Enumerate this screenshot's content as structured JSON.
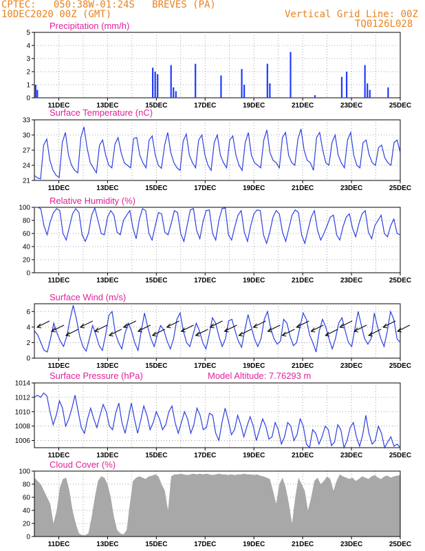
{
  "header": {
    "line1_left": "CPTEC:   050:38W-01:24S   BREVES (PA)",
    "line2_left": "10DEC2020 00Z (GMT)",
    "line1_right": "Vertical Grid Line: 00Z",
    "line2_right": "TQ0126L028"
  },
  "x_tick_labels": [
    "11DEC",
    "13DEC",
    "15DEC",
    "17DEC",
    "19DEC",
    "21DEC",
    "23DEC",
    "25DEC"
  ],
  "colors": {
    "line": "#2b3fe0",
    "bar": "#1f3bff",
    "area": "#a8a8a8",
    "title": "#e0209a",
    "header": "#e8821e"
  },
  "chart_data": [
    {
      "type": "bar",
      "title": "Precipitation (mm/h)",
      "ylim": [
        0,
        5
      ],
      "yticks": [
        "0",
        "1",
        "2",
        "3",
        "4",
        "5"
      ],
      "x": [
        "10.05",
        "10.12",
        "14.85",
        "14.95",
        "15.05",
        "15.6",
        "15.7",
        "15.8",
        "16.6",
        "17.65",
        "18.5",
        "18.6",
        "19.55",
        "19.65",
        "20.5",
        "21.5",
        "22.6",
        "22.8",
        "23.55",
        "23.65",
        "23.75",
        "24.5"
      ],
      "values": [
        1.0,
        0.6,
        2.3,
        2.0,
        1.8,
        2.5,
        0.8,
        0.5,
        2.6,
        1.7,
        2.2,
        1.0,
        2.6,
        1.1,
        3.5,
        0.2,
        1.6,
        2.0,
        2.5,
        1.1,
        0.6,
        0.8
      ]
    },
    {
      "type": "line",
      "title": "Surface Temperature (nC)",
      "ylim": [
        21,
        33
      ],
      "yticks": [
        "21",
        "24",
        "27",
        "30",
        "33"
      ],
      "x_range": [
        "10DEC 00Z",
        "25DEC 00Z"
      ],
      "values": [
        22.0,
        21.5,
        21.3,
        28.0,
        29.2,
        25.0,
        23.0,
        22.0,
        21.6,
        28.5,
        30.5,
        26.0,
        24.0,
        23.0,
        22.5,
        29.5,
        31.6,
        27.5,
        24.5,
        23.5,
        22.5,
        28.0,
        29.0,
        26.0,
        24.0,
        23.5,
        28.2,
        29.5,
        26.5,
        24.5,
        24.0,
        23.5,
        29.3,
        29.5,
        26.0,
        24.5,
        23.5,
        29.0,
        29.8,
        26.0,
        24.0,
        23.4,
        28.0,
        30.5,
        26.5,
        24.5,
        23.5,
        23.0,
        28.8,
        30.2,
        26.0,
        24.5,
        23.5,
        29.0,
        30.0,
        26.0,
        24.0,
        23.0,
        28.5,
        30.0,
        26.0,
        24.5,
        23.5,
        29.0,
        29.8,
        26.0,
        24.0,
        23.0,
        28.5,
        30.5,
        26.0,
        24.5,
        24.0,
        23.5,
        29.0,
        31.0,
        26.5,
        25.0,
        24.5,
        23.5,
        29.5,
        30.5,
        26.0,
        24.5,
        24.0,
        29.2,
        31.2,
        27.0,
        25.0,
        24.5,
        23.0,
        29.5,
        30.5,
        27.0,
        24.5,
        24.0,
        28.5,
        30.0,
        26.0,
        24.5,
        23.5,
        29.0,
        30.5,
        26.0,
        24.0,
        23.5,
        28.5,
        29.0,
        26.0,
        24.5,
        24.0,
        27.5,
        28.0,
        25.5,
        24.5,
        24.0,
        28.5,
        29.0,
        26.5
      ]
    },
    {
      "type": "line",
      "title": "Relative Humidity (%)",
      "ylim": [
        0,
        100
      ],
      "yticks": [
        "0",
        "20",
        "40",
        "60",
        "80",
        "100"
      ],
      "values": [
        100,
        100,
        98,
        72,
        58,
        78,
        92,
        98,
        95,
        60,
        50,
        70,
        90,
        98,
        92,
        58,
        48,
        60,
        88,
        99,
        80,
        60,
        58,
        85,
        95,
        88,
        62,
        58,
        80,
        88,
        95,
        68,
        52,
        82,
        98,
        95,
        60,
        50,
        72,
        92,
        90,
        62,
        58,
        75,
        95,
        92,
        60,
        48,
        72,
        96,
        98,
        65,
        52,
        78,
        95,
        96,
        60,
        50,
        80,
        98,
        99,
        58,
        50,
        70,
        88,
        95,
        62,
        48,
        72,
        90,
        96,
        95,
        58,
        45,
        62,
        85,
        95,
        90,
        62,
        48,
        68,
        88,
        96,
        92,
        58,
        45,
        65,
        85,
        95,
        65,
        50,
        60,
        72,
        85,
        88,
        58,
        50,
        70,
        85,
        90,
        68,
        55,
        75,
        90,
        95,
        62,
        52,
        72,
        80,
        88,
        60,
        55,
        72,
        82,
        60,
        58
      ]
    },
    {
      "type": "line",
      "title": "Surface Wind (m/s)",
      "ylim": [
        0,
        7
      ],
      "yticks": [
        "0",
        "2",
        "4",
        "6"
      ],
      "values": [
        3.5,
        3.0,
        2.0,
        1.0,
        0.8,
        2.5,
        4.5,
        3.2,
        2.2,
        1.5,
        2.8,
        5.0,
        6.8,
        5.0,
        2.8,
        1.5,
        0.9,
        2.5,
        4.2,
        3.0,
        1.6,
        1.0,
        3.0,
        5.5,
        6.0,
        3.2,
        2.0,
        1.2,
        3.2,
        4.5,
        3.5,
        2.0,
        1.0,
        3.5,
        5.8,
        4.0,
        2.5,
        1.5,
        3.0,
        4.2,
        3.6,
        2.2,
        1.2,
        2.5,
        5.0,
        5.8,
        3.5,
        2.0,
        1.5,
        3.0,
        4.5,
        3.5,
        2.0,
        1.2,
        3.0,
        5.2,
        4.5,
        2.8,
        1.5,
        2.5,
        4.8,
        5.0,
        3.5,
        2.2,
        1.4,
        3.6,
        5.6,
        4.0,
        2.5,
        1.5,
        2.5,
        5.0,
        6.0,
        3.8,
        2.5,
        1.8,
        2.2,
        5.0,
        4.5,
        2.8,
        1.6,
        2.0,
        4.0,
        5.8,
        5.0,
        3.0,
        2.0,
        0.8,
        3.5,
        5.0,
        4.0,
        2.5,
        1.2,
        2.5,
        4.5,
        5.2,
        3.5,
        2.0,
        1.5,
        3.8,
        6.0,
        4.2,
        2.5,
        1.8,
        2.5,
        5.8,
        4.0,
        2.5,
        1.5,
        3.5,
        6.0,
        5.0,
        2.5,
        2.0
      ]
    },
    {
      "type": "line",
      "title": "Surface Pressure (hPa)",
      "annotation": "Model Altitude: 7.76293 m",
      "ylim": [
        1005,
        1014
      ],
      "yticks": [
        "1006",
        "1008",
        "1010",
        "1012",
        "1014"
      ],
      "values": [
        1012.0,
        1012.3,
        1012.0,
        1012.6,
        1012.2,
        1010.0,
        1008.2,
        1009.5,
        1011.5,
        1010.5,
        1008.0,
        1009.0,
        1010.5,
        1012.3,
        1010.0,
        1007.8,
        1007.0,
        1009.0,
        1010.5,
        1009.0,
        1007.8,
        1009.5,
        1011.0,
        1010.0,
        1008.0,
        1007.5,
        1009.8,
        1011.2,
        1008.5,
        1007.0,
        1009.0,
        1011.2,
        1009.0,
        1007.0,
        1008.8,
        1010.8,
        1009.5,
        1007.5,
        1008.5,
        1010.0,
        1009.0,
        1007.5,
        1008.2,
        1010.0,
        1010.8,
        1008.5,
        1007.0,
        1008.5,
        1010.0,
        1009.0,
        1007.0,
        1008.2,
        1010.5,
        1009.5,
        1007.5,
        1007.8,
        1009.8,
        1009.5,
        1007.0,
        1006.0,
        1008.5,
        1010.5,
        1008.8,
        1006.8,
        1007.5,
        1009.5,
        1008.2,
        1006.5,
        1008.0,
        1009.3,
        1008.0,
        1006.0,
        1007.5,
        1009.0,
        1008.0,
        1006.2,
        1006.5,
        1008.5,
        1007.5,
        1005.5,
        1006.5,
        1008.5,
        1008.0,
        1006.0,
        1006.8,
        1009.0,
        1008.0,
        1005.5,
        1005.0,
        1007.5,
        1007.0,
        1005.5,
        1006.5,
        1008.0,
        1007.5,
        1005.3,
        1005.8,
        1008.2,
        1007.5,
        1005.0,
        1006.0,
        1007.8,
        1008.5,
        1006.5,
        1005.2,
        1006.8,
        1009.5,
        1007.0,
        1005.5,
        1006.0,
        1008.0,
        1007.0,
        1005.0,
        1005.8,
        1006.5,
        1005.2,
        1005.5,
        1005.0
      ]
    },
    {
      "type": "area",
      "title": "Cloud Cover (%)",
      "ylim": [
        0,
        100
      ],
      "yticks": [
        "0",
        "20",
        "40",
        "60",
        "80",
        "100"
      ],
      "values": [
        90,
        85,
        80,
        70,
        60,
        50,
        20,
        40,
        75,
        88,
        90,
        70,
        40,
        20,
        5,
        2,
        2,
        5,
        30,
        60,
        85,
        92,
        90,
        80,
        60,
        30,
        10,
        5,
        3,
        10,
        50,
        85,
        90,
        92,
        90,
        88,
        92,
        93,
        95,
        92,
        80,
        70,
        40,
        92,
        95,
        95,
        96,
        95,
        94,
        95,
        96,
        95,
        96,
        95,
        96,
        95,
        94,
        95,
        96,
        95,
        95,
        94,
        95,
        94,
        95,
        95,
        96,
        95,
        95,
        94,
        95,
        93,
        92,
        90,
        88,
        70,
        50,
        80,
        90,
        75,
        50,
        20,
        60,
        90,
        80,
        70,
        40,
        60,
        85,
        90,
        80,
        85,
        92,
        88,
        70,
        85,
        95,
        92,
        90,
        88,
        90,
        85,
        88,
        92,
        90,
        88,
        92,
        94,
        90,
        88,
        92,
        93,
        90,
        92,
        93,
        94
      ]
    }
  ]
}
